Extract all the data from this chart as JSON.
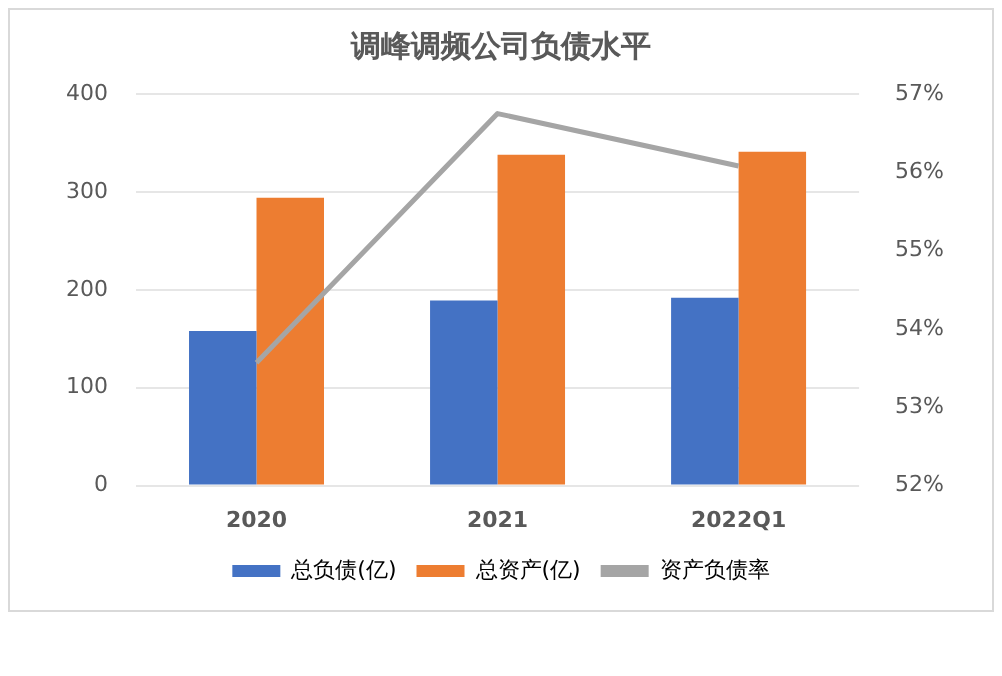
{
  "chart_data": {
    "type": "bar",
    "title": "调峰调频公司负债水平",
    "categories": [
      "2020",
      "2021",
      "2022Q1"
    ],
    "series": [
      {
        "name": "总负债(亿)",
        "color": "#4472c4",
        "values": [
          158,
          189,
          192
        ]
      },
      {
        "name": "总资产(亿)",
        "color": "#ed7d31",
        "values": [
          294,
          338,
          341
        ]
      },
      {
        "name": "资产负债率",
        "color": "#a5a5a5",
        "type": "line",
        "axis": "y2",
        "values": [
          53.57,
          56.75,
          56.08
        ]
      }
    ],
    "ylim": [
      0,
      400
    ],
    "yticks": [
      0,
      100,
      200,
      300,
      400
    ],
    "y2lim": [
      52,
      57
    ],
    "y2ticks": [
      {
        "value": 52,
        "label": "52%"
      },
      {
        "value": 53,
        "label": "53%"
      },
      {
        "value": 54,
        "label": "54%"
      },
      {
        "value": 55,
        "label": "55%"
      },
      {
        "value": 56,
        "label": "56%"
      },
      {
        "value": 57,
        "label": "57%"
      }
    ],
    "grid": "y",
    "legend": "bottom",
    "marker": "none",
    "line_style": "solid"
  }
}
